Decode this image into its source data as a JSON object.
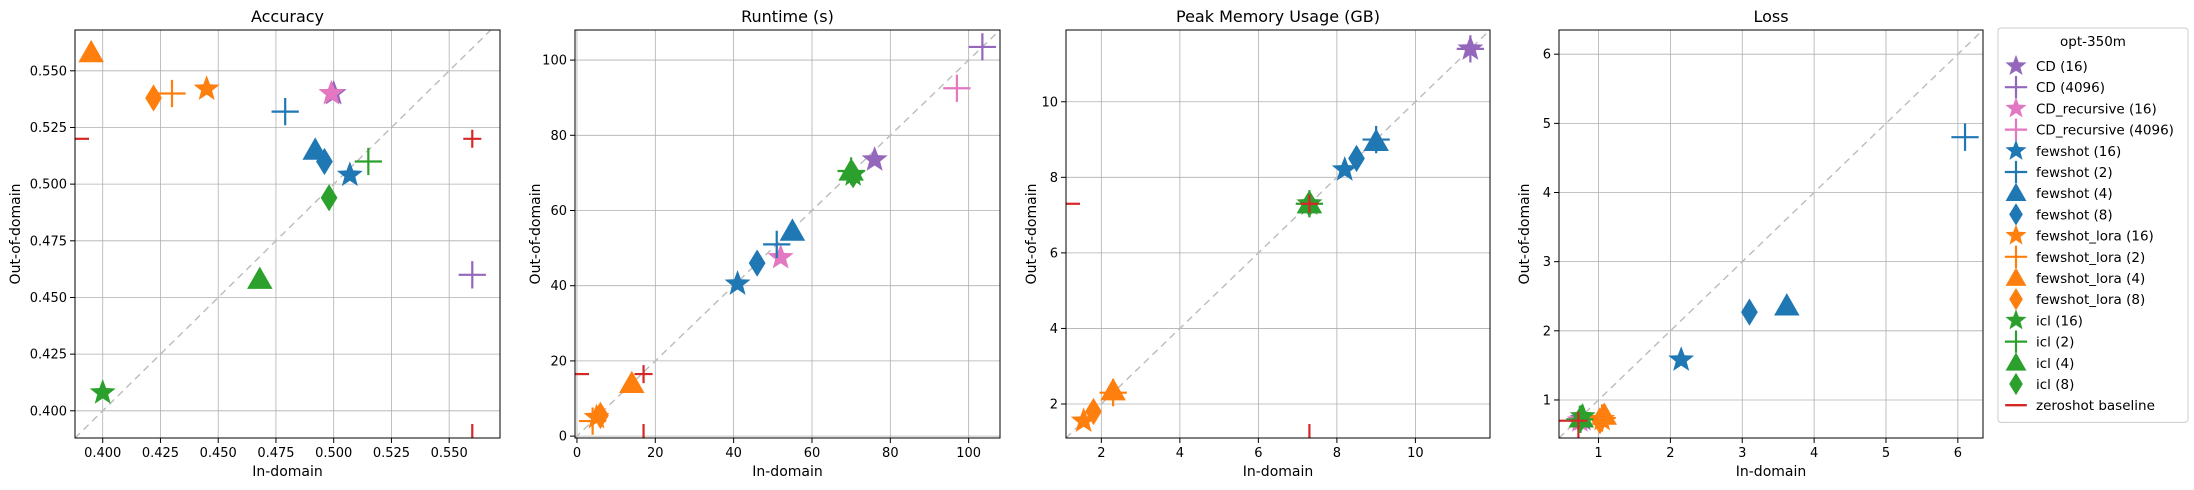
{
  "legend": {
    "title": "opt-350m",
    "entries": [
      {
        "label": "CD (16)",
        "color": "#9467bd",
        "marker": "star"
      },
      {
        "label": "CD (4096)",
        "color": "#9467bd",
        "marker": "plus"
      },
      {
        "label": "CD_recursive (16)",
        "color": "#e377c2",
        "marker": "star"
      },
      {
        "label": "CD_recursive (4096)",
        "color": "#e377c2",
        "marker": "plus"
      },
      {
        "label": "fewshot (16)",
        "color": "#1f77b4",
        "marker": "star"
      },
      {
        "label": "fewshot (2)",
        "color": "#1f77b4",
        "marker": "plus"
      },
      {
        "label": "fewshot (4)",
        "color": "#1f77b4",
        "marker": "triangle"
      },
      {
        "label": "fewshot (8)",
        "color": "#1f77b4",
        "marker": "diamond"
      },
      {
        "label": "fewshot_lora (16)",
        "color": "#ff7f0e",
        "marker": "star"
      },
      {
        "label": "fewshot_lora (2)",
        "color": "#ff7f0e",
        "marker": "plus"
      },
      {
        "label": "fewshot_lora (4)",
        "color": "#ff7f0e",
        "marker": "triangle"
      },
      {
        "label": "fewshot_lora (8)",
        "color": "#ff7f0e",
        "marker": "diamond"
      },
      {
        "label": "icl (16)",
        "color": "#2ca02c",
        "marker": "star"
      },
      {
        "label": "icl (2)",
        "color": "#2ca02c",
        "marker": "plus"
      },
      {
        "label": "icl (4)",
        "color": "#2ca02c",
        "marker": "triangle"
      },
      {
        "label": "icl (8)",
        "color": "#2ca02c",
        "marker": "diamond"
      },
      {
        "label": "zeroshot baseline",
        "color": "#d62728",
        "marker": "line"
      }
    ]
  },
  "chart_data": [
    {
      "type": "scatter",
      "title": "Accuracy",
      "xlabel": "In-domain",
      "ylabel": "Out-of-domain",
      "xlim": [
        0.388,
        0.572
      ],
      "ylim": [
        0.388,
        0.568
      ],
      "xticks": [
        0.4,
        0.425,
        0.45,
        0.475,
        0.5,
        0.525,
        0.55
      ],
      "xtick_labels": [
        "0.400",
        "0.425",
        "0.450",
        "0.475",
        "0.500",
        "0.525",
        "0.550"
      ],
      "yticks": [
        0.4,
        0.425,
        0.45,
        0.475,
        0.5,
        0.525,
        0.55
      ],
      "ytick_labels": [
        "0.400",
        "0.425",
        "0.450",
        "0.475",
        "0.500",
        "0.525",
        "0.550"
      ],
      "grid": true,
      "zeroshot": {
        "x": 0.56,
        "y": 0.52
      },
      "points": [
        {
          "series": "CD (16)",
          "x": 0.5,
          "y": 0.54
        },
        {
          "series": "CD (4096)",
          "x": 0.56,
          "y": 0.46
        },
        {
          "series": "CD_recursive (16)",
          "x": 0.499,
          "y": 0.54
        },
        {
          "series": "fewshot (16)",
          "x": 0.507,
          "y": 0.504
        },
        {
          "series": "fewshot (2)",
          "x": 0.479,
          "y": 0.532
        },
        {
          "series": "fewshot (4)",
          "x": 0.492,
          "y": 0.515
        },
        {
          "series": "fewshot (8)",
          "x": 0.496,
          "y": 0.51
        },
        {
          "series": "fewshot_lora (16)",
          "x": 0.445,
          "y": 0.542
        },
        {
          "series": "fewshot_lora (2)",
          "x": 0.43,
          "y": 0.54
        },
        {
          "series": "fewshot_lora (4)",
          "x": 0.395,
          "y": 0.558
        },
        {
          "series": "fewshot_lora (8)",
          "x": 0.422,
          "y": 0.538
        },
        {
          "series": "icl (16)",
          "x": 0.4,
          "y": 0.408
        },
        {
          "series": "icl (2)",
          "x": 0.515,
          "y": 0.51
        },
        {
          "series": "icl (4)",
          "x": 0.468,
          "y": 0.458
        },
        {
          "series": "icl (8)",
          "x": 0.498,
          "y": 0.494
        }
      ]
    },
    {
      "type": "scatter",
      "title": "Runtime (s)",
      "xlabel": "In-domain",
      "ylabel": "Out-of-domain",
      "xlim": [
        -0.5,
        108
      ],
      "ylim": [
        -0.5,
        108
      ],
      "xticks": [
        0,
        20,
        40,
        60,
        80,
        100
      ],
      "xtick_labels": [
        "0",
        "20",
        "40",
        "60",
        "80",
        "100"
      ],
      "yticks": [
        0,
        20,
        40,
        60,
        80,
        100
      ],
      "ytick_labels": [
        "0",
        "20",
        "40",
        "60",
        "80",
        "100"
      ],
      "grid": true,
      "zeroshot": {
        "x": 17,
        "y": 16.5
      },
      "points": [
        {
          "series": "CD (16)",
          "x": 76,
          "y": 73.5
        },
        {
          "series": "CD (4096)",
          "x": 103.5,
          "y": 103.5
        },
        {
          "series": "CD_recursive (16)",
          "x": 52,
          "y": 47.5
        },
        {
          "series": "CD_recursive (4096)",
          "x": 97,
          "y": 92.5
        },
        {
          "series": "fewshot (16)",
          "x": 41,
          "y": 40.5
        },
        {
          "series": "fewshot (2)",
          "x": 51,
          "y": 51
        },
        {
          "series": "fewshot (4)",
          "x": 55,
          "y": 54.5
        },
        {
          "series": "fewshot (8)",
          "x": 46,
          "y": 46
        },
        {
          "series": "fewshot_lora (16)",
          "x": 5,
          "y": 5
        },
        {
          "series": "fewshot_lora (2)",
          "x": 4,
          "y": 4
        },
        {
          "series": "fewshot_lora (4)",
          "x": 14,
          "y": 14
        },
        {
          "series": "fewshot_lora (8)",
          "x": 6,
          "y": 5.5
        },
        {
          "series": "icl (16)",
          "x": 70.5,
          "y": 69.5
        },
        {
          "series": "icl (2)",
          "x": 70,
          "y": 70.5
        },
        {
          "series": "icl (4)",
          "x": 70,
          "y": 70.5
        },
        {
          "series": "icl (8)",
          "x": 70.5,
          "y": 69.5
        }
      ]
    },
    {
      "type": "scatter",
      "title": "Peak Memory Usage (GB)",
      "xlabel": "In-domain",
      "ylabel": "Out-of-domain",
      "xlim": [
        1.1,
        11.9
      ],
      "ylim": [
        1.1,
        11.9
      ],
      "xticks": [
        2,
        4,
        6,
        8,
        10
      ],
      "xtick_labels": [
        "2",
        "4",
        "6",
        "8",
        "10"
      ],
      "yticks": [
        2,
        4,
        6,
        8,
        10
      ],
      "ytick_labels": [
        "2",
        "4",
        "6",
        "8",
        "10"
      ],
      "grid": true,
      "zeroshot": {
        "x": 7.3,
        "y": 7.3
      },
      "points": [
        {
          "series": "CD (16)",
          "x": 11.4,
          "y": 11.4
        },
        {
          "series": "CD (4096)",
          "x": 11.4,
          "y": 11.4
        },
        {
          "series": "CD_recursive (16)",
          "x": 7.3,
          "y": 7.3
        },
        {
          "series": "fewshot (16)",
          "x": 8.2,
          "y": 8.2
        },
        {
          "series": "fewshot (2)",
          "x": 9.0,
          "y": 9.0
        },
        {
          "series": "fewshot (4)",
          "x": 9.0,
          "y": 8.95
        },
        {
          "series": "fewshot (8)",
          "x": 8.5,
          "y": 8.5
        },
        {
          "series": "fewshot_lora (16)",
          "x": 1.55,
          "y": 1.55
        },
        {
          "series": "fewshot_lora (2)",
          "x": 2.3,
          "y": 2.3
        },
        {
          "series": "fewshot_lora (4)",
          "x": 2.3,
          "y": 2.35
        },
        {
          "series": "fewshot_lora (8)",
          "x": 1.8,
          "y": 1.8
        },
        {
          "series": "icl (16)",
          "x": 7.3,
          "y": 7.3
        },
        {
          "series": "icl (2)",
          "x": 7.3,
          "y": 7.3
        },
        {
          "series": "icl (4)",
          "x": 7.3,
          "y": 7.3
        },
        {
          "series": "icl (8)",
          "x": 7.3,
          "y": 7.3
        }
      ]
    },
    {
      "type": "scatter",
      "title": "Loss",
      "xlabel": "In-domain",
      "ylabel": "Out-of-domain",
      "xlim": [
        0.45,
        6.35
      ],
      "ylim": [
        0.45,
        6.35
      ],
      "xticks": [
        1,
        2,
        3,
        4,
        5,
        6
      ],
      "xtick_labels": [
        "1",
        "2",
        "3",
        "4",
        "5",
        "6"
      ],
      "yticks": [
        1,
        2,
        3,
        4,
        5,
        6
      ],
      "ytick_labels": [
        "1",
        "2",
        "3",
        "4",
        "5",
        "6"
      ],
      "grid": true,
      "zeroshot": {
        "x": 0.72,
        "y": 0.7
      },
      "points": [
        {
          "series": "CD (16)",
          "x": 0.78,
          "y": 0.72
        },
        {
          "series": "CD (4096)",
          "x": 0.75,
          "y": 0.72
        },
        {
          "series": "CD_recursive (16)",
          "x": 0.74,
          "y": 0.7
        },
        {
          "series": "fewshot (16)",
          "x": 2.15,
          "y": 1.58
        },
        {
          "series": "fewshot (2)",
          "x": 6.1,
          "y": 4.8
        },
        {
          "series": "fewshot (4)",
          "x": 3.62,
          "y": 2.36
        },
        {
          "series": "fewshot (8)",
          "x": 3.1,
          "y": 2.27
        },
        {
          "series": "fewshot_lora (16)",
          "x": 1.05,
          "y": 0.72
        },
        {
          "series": "fewshot_lora (2)",
          "x": 1.05,
          "y": 0.74
        },
        {
          "series": "fewshot_lora (4)",
          "x": 1.08,
          "y": 0.78
        },
        {
          "series": "fewshot_lora (8)",
          "x": 1.02,
          "y": 0.7
        },
        {
          "series": "icl (16)",
          "x": 0.78,
          "y": 0.76
        },
        {
          "series": "icl (2)",
          "x": 0.74,
          "y": 0.72
        },
        {
          "series": "icl (4)",
          "x": 0.76,
          "y": 0.74
        },
        {
          "series": "icl (8)",
          "x": 0.76,
          "y": 0.74
        }
      ]
    }
  ]
}
